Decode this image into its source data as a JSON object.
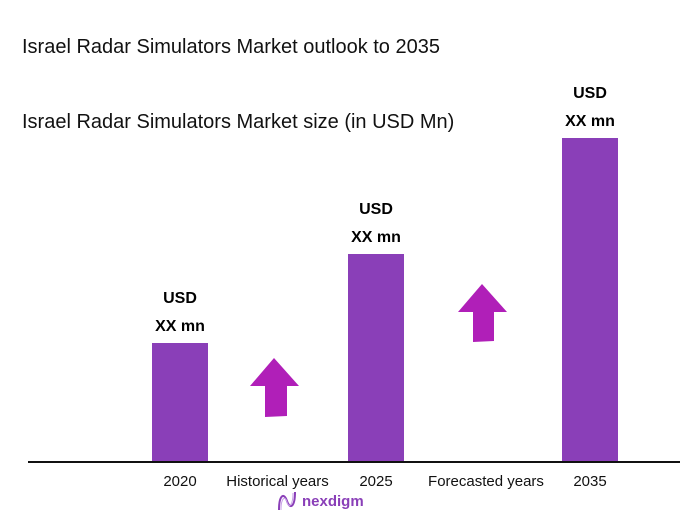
{
  "chart_data": {
    "type": "bar",
    "title": "Israel Radar Simulators Market outlook to 2035",
    "subtitle": "Israel Radar Simulators Market size (in USD Mn)",
    "categories": [
      "2020",
      "2025",
      "2035"
    ],
    "data_labels": [
      {
        "line1": "USD",
        "line2": "XX mn"
      },
      {
        "line1": "USD",
        "line2": "XX mn"
      },
      {
        "line1": "USD",
        "line2": "XX mn"
      }
    ],
    "relative_values": [
      1.0,
      1.75,
      2.72
    ],
    "period_labels": [
      "Historical years",
      "Forecasted years"
    ],
    "bar_color": "#8a3fb8",
    "arrow_color": "#b01fb8",
    "grid": false
  },
  "brand": {
    "name": "nexdigm",
    "color": "#8a3fb8"
  }
}
